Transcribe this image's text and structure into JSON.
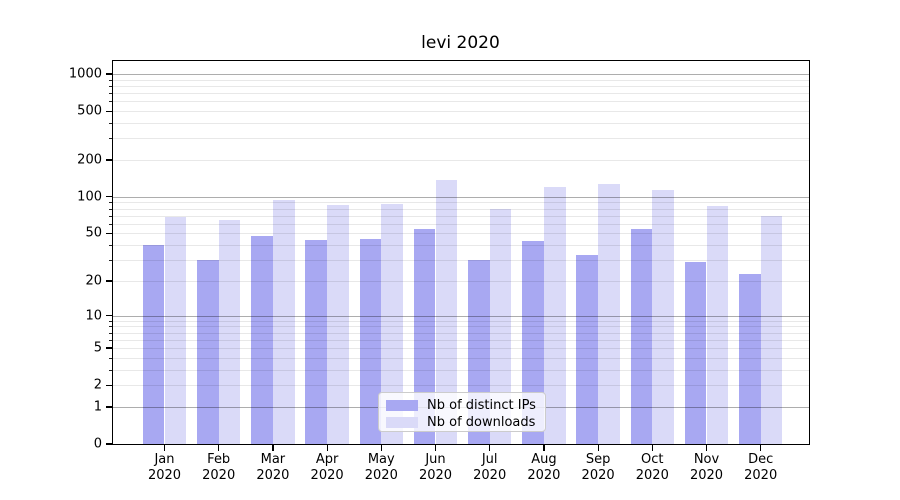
{
  "chart_data": {
    "type": "bar",
    "title": "levi 2020",
    "categories": [
      "Jan",
      "Feb",
      "Mar",
      "Apr",
      "May",
      "Jun",
      "Jul",
      "Aug",
      "Sep",
      "Oct",
      "Nov",
      "Dec"
    ],
    "category_year": "2020",
    "series": [
      {
        "name": "Nb of distinct IPs",
        "color": "#a8a8f2",
        "values": [
          40,
          30,
          48,
          44,
          45,
          54,
          30,
          43,
          33,
          54,
          29,
          23
        ]
      },
      {
        "name": "Nb of downloads",
        "color": "#dadaf8",
        "values": [
          68,
          64,
          94,
          85,
          87,
          138,
          79,
          120,
          128,
          114,
          84,
          70
        ]
      }
    ],
    "y_axis": {
      "scale": "log10(value+1)",
      "tick_values": [
        0,
        1,
        2,
        5,
        10,
        20,
        50,
        100,
        200,
        500,
        1000
      ],
      "tick_labels": [
        "0",
        "1",
        "2",
        "5",
        "10",
        "20",
        "50",
        "100",
        "200",
        "500",
        "1000"
      ],
      "minor_tick_values": [
        3,
        4,
        6,
        7,
        8,
        9,
        30,
        40,
        60,
        70,
        80,
        90,
        300,
        400,
        600,
        700,
        800,
        900
      ],
      "ylim": [
        0,
        1276
      ]
    },
    "grid": true,
    "legend_position": "lower center",
    "colors": {
      "major_grid": "rgba(0,0,0,0.32)",
      "minor_grid": "rgba(0,0,0,0.09)",
      "spine": "#000000"
    }
  }
}
